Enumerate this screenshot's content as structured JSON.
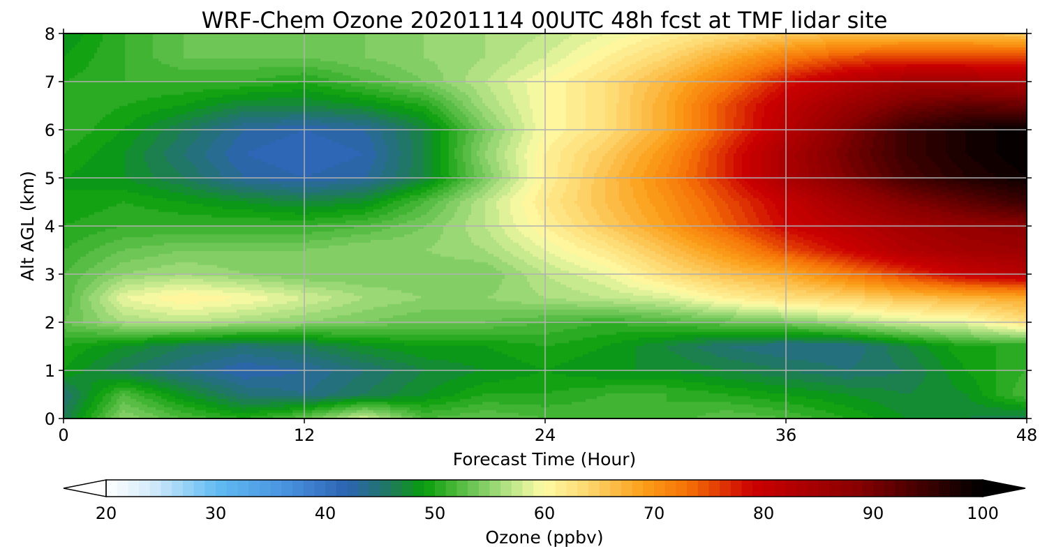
{
  "chart_data": {
    "type": "heatmap",
    "subtype": "filled-contour",
    "title": "WRF-Chem Ozone 20201114 00UTC 48h fcst at TMF lidar site",
    "xlabel": "Forecast Time (Hour)",
    "ylabel": "Alt AGL (km)",
    "xlim": [
      0,
      48
    ],
    "ylim": [
      0,
      8
    ],
    "xticks": [
      0,
      12,
      24,
      36,
      48
    ],
    "yticks": [
      0,
      1,
      2,
      3,
      4,
      5,
      6,
      7,
      8
    ],
    "grid": true,
    "x_step_hours": 3,
    "y_levels_km": [
      0,
      0.5,
      1,
      1.5,
      2,
      2.5,
      3,
      3.5,
      4,
      4.5,
      5,
      5.5,
      6,
      6.5,
      7,
      7.5,
      8
    ],
    "z_units": "ppbv",
    "z": [
      [
        46,
        55,
        52,
        50,
        53,
        58,
        52,
        53,
        52,
        52,
        51,
        53,
        52,
        50,
        48,
        47,
        46
      ],
      [
        45,
        52,
        48,
        45,
        44,
        46,
        48,
        50,
        50,
        51,
        51,
        50,
        49,
        48,
        47,
        48,
        52
      ],
      [
        49,
        46,
        44,
        42,
        43,
        45,
        47,
        48,
        49,
        48,
        48,
        47,
        46,
        45,
        46,
        49,
        51
      ],
      [
        50,
        48,
        46,
        45,
        46,
        48,
        49,
        49,
        50,
        49,
        47,
        45,
        44,
        44,
        47,
        50,
        50
      ],
      [
        53,
        56,
        57,
        56,
        55,
        54,
        53,
        53,
        52,
        51,
        52,
        53,
        54,
        56,
        58,
        59,
        63
      ],
      [
        52,
        59,
        61,
        60,
        58,
        56,
        55,
        55,
        56,
        57,
        58,
        61,
        63,
        64,
        66,
        67,
        68
      ],
      [
        52,
        55,
        56,
        55,
        54,
        54,
        54,
        54,
        57,
        59,
        63,
        66,
        68,
        72,
        76,
        80,
        82
      ],
      [
        51,
        53,
        54,
        54,
        54,
        55,
        55,
        56,
        59,
        62,
        66,
        70,
        75,
        79,
        83,
        85,
        86
      ],
      [
        50,
        51,
        51,
        51,
        51,
        52,
        54,
        57,
        61,
        65,
        69,
        74,
        79,
        82,
        85,
        87,
        88
      ],
      [
        49,
        50,
        49,
        48,
        47,
        48,
        52,
        57,
        62,
        66,
        70,
        75,
        80,
        85,
        89,
        92,
        95
      ],
      [
        49,
        48,
        46,
        43,
        42,
        43,
        47,
        54,
        61,
        66,
        71,
        77,
        84,
        89,
        94,
        97,
        99
      ],
      [
        50,
        48,
        45,
        42,
        41,
        42,
        47,
        55,
        61,
        65,
        70,
        77,
        84,
        90,
        95,
        98,
        100
      ],
      [
        51,
        49,
        46,
        43,
        42,
        43,
        47,
        54,
        60,
        63,
        68,
        75,
        82,
        89,
        95,
        98,
        100
      ],
      [
        51,
        50,
        49,
        47,
        47,
        48,
        50,
        56,
        60,
        63,
        68,
        75,
        81,
        86,
        90,
        92,
        91
      ],
      [
        50,
        51,
        51,
        51,
        50,
        52,
        54,
        57,
        60,
        63,
        67,
        72,
        78,
        82,
        85,
        85,
        84
      ],
      [
        49,
        51,
        53,
        53,
        53,
        54,
        55,
        56,
        58,
        61,
        64,
        68,
        72,
        75,
        76,
        76,
        76
      ],
      [
        48,
        51,
        53,
        53,
        53,
        54,
        55,
        56,
        57,
        59,
        61,
        63,
        65,
        66,
        66,
        66,
        65
      ]
    ],
    "colorbar": {
      "label": "Ozone  (ppbv)",
      "min": 20,
      "max": 100,
      "step": 1,
      "ticks": [
        20,
        30,
        40,
        50,
        60,
        70,
        80,
        90,
        100
      ],
      "extend": "both",
      "color_stops": [
        {
          "v": 20,
          "c": "#ffffff"
        },
        {
          "v": 24,
          "c": "#d6ecfa"
        },
        {
          "v": 30,
          "c": "#62bcf3"
        },
        {
          "v": 36,
          "c": "#4a95e0"
        },
        {
          "v": 42,
          "c": "#2d63b3"
        },
        {
          "v": 46,
          "c": "#1f7a5c"
        },
        {
          "v": 49,
          "c": "#079d0a"
        },
        {
          "v": 52,
          "c": "#4cb83b"
        },
        {
          "v": 55,
          "c": "#8ed36e"
        },
        {
          "v": 58,
          "c": "#d4ee95"
        },
        {
          "v": 60,
          "c": "#fffba5"
        },
        {
          "v": 64,
          "c": "#fdd66e"
        },
        {
          "v": 69,
          "c": "#fb9f1a"
        },
        {
          "v": 73,
          "c": "#f57206"
        },
        {
          "v": 79,
          "c": "#cc0000"
        },
        {
          "v": 88,
          "c": "#8e0000"
        },
        {
          "v": 95,
          "c": "#3a0000"
        },
        {
          "v": 100,
          "c": "#000000"
        }
      ]
    }
  }
}
